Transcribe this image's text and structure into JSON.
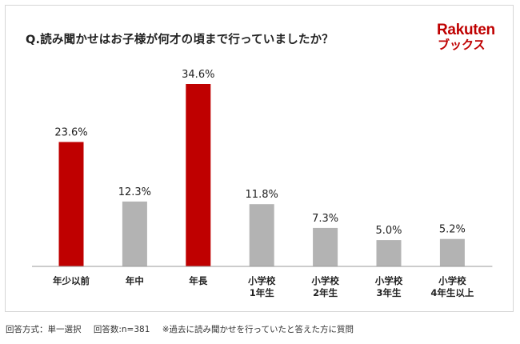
{
  "title": "Q.読み聞かせはお子様が何才の頃まで行っていましたか？",
  "logo": {
    "main": "Rakuten",
    "sub": "ブックス",
    "color": "#bf0000"
  },
  "footnote": {
    "method": "回答方式：単一選択",
    "count": "回答数:n=381",
    "note": "※過去に読み聞かせを行っていたと答えた方に質問"
  },
  "colors": {
    "highlight": "#bf0000",
    "normal": "#b3b3b3",
    "axis": "#999999",
    "text": "#222222"
  },
  "chart_data": {
    "type": "bar",
    "title": "Q.読み聞かせはお子様が何才の頃まで行っていましたか？",
    "categories": [
      [
        "年少以前"
      ],
      [
        "年中"
      ],
      [
        "年長"
      ],
      [
        "小学校",
        "1年生"
      ],
      [
        "小学校",
        "2年生"
      ],
      [
        "小学校",
        "3年生"
      ],
      [
        "小学校",
        "4年生以上"
      ]
    ],
    "values": [
      23.6,
      12.3,
      34.6,
      11.8,
      7.3,
      5.0,
      5.2
    ],
    "value_labels": [
      "23.6%",
      "12.3%",
      "34.6%",
      "11.8%",
      "7.3%",
      "5.0%",
      "5.2%"
    ],
    "highlighted": [
      true,
      false,
      true,
      false,
      false,
      false,
      false
    ],
    "unit": "%",
    "xlabel": "",
    "ylabel": "",
    "ylim": [
      0,
      35
    ],
    "grid": false,
    "legend": "none"
  }
}
